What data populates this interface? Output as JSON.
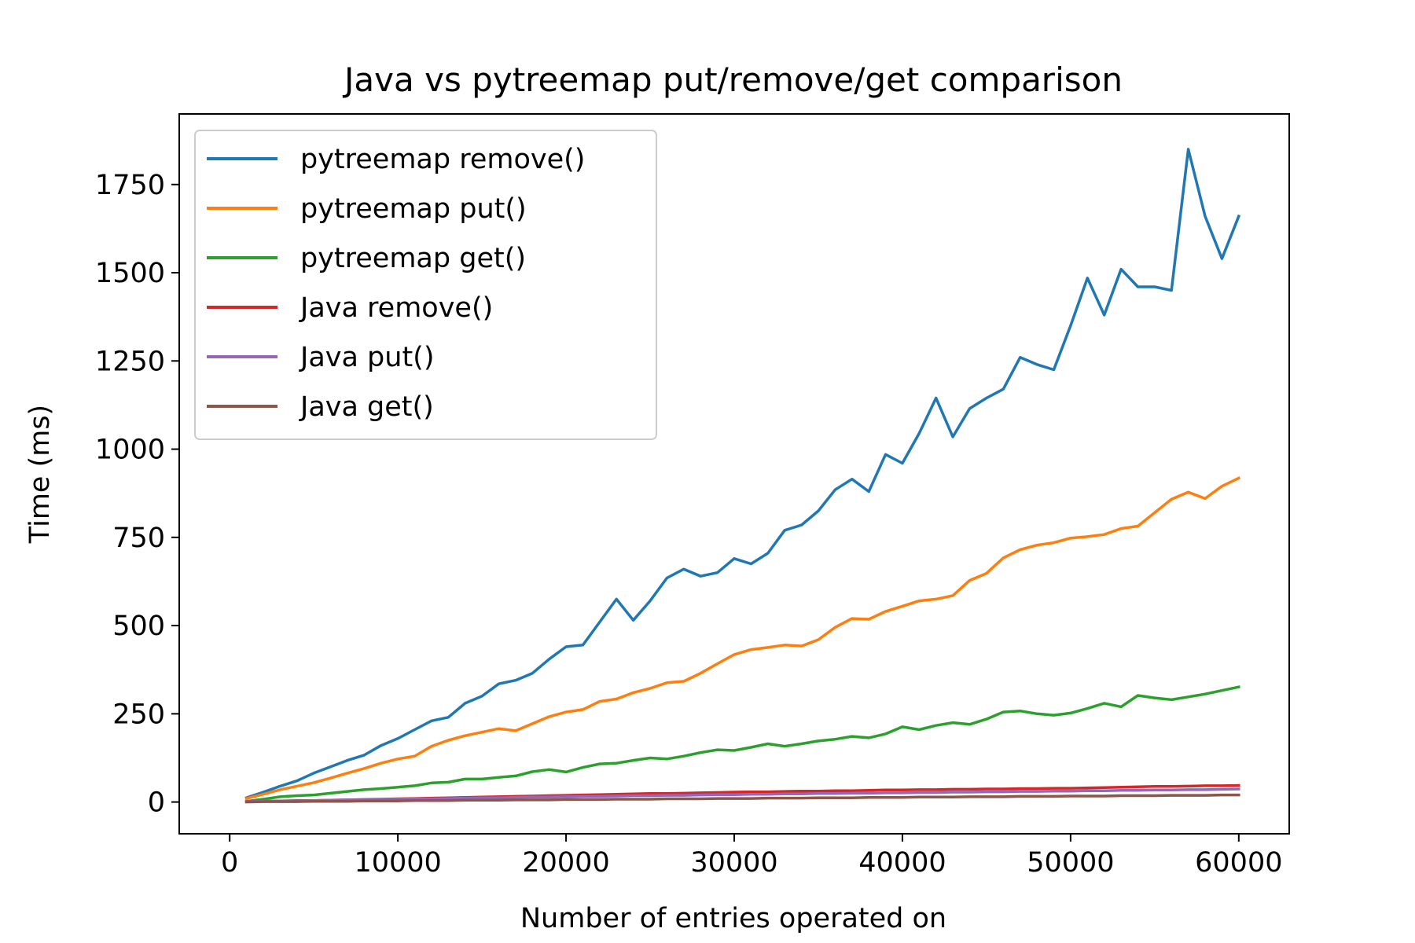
{
  "chart_data": {
    "type": "line",
    "title": "Java vs pytreemap put/remove/get comparison",
    "xlabel": "Number of entries operated on",
    "ylabel": "Time (ms)",
    "xlim": [
      -3000,
      63000
    ],
    "ylim": [
      -90,
      1950
    ],
    "xticks": [
      0,
      10000,
      20000,
      30000,
      40000,
      50000,
      60000
    ],
    "xtick_labels": [
      "0",
      "10000",
      "20000",
      "30000",
      "40000",
      "50000",
      "60000"
    ],
    "yticks": [
      0,
      250,
      500,
      750,
      1000,
      1250,
      1500,
      1750
    ],
    "ytick_labels": [
      "0",
      "250",
      "500",
      "750",
      "1000",
      "1250",
      "1500",
      "1750"
    ],
    "grid": false,
    "legend_position": "top-left",
    "x": [
      1000,
      2000,
      3000,
      4000,
      5000,
      6000,
      7000,
      8000,
      9000,
      10000,
      11000,
      12000,
      13000,
      14000,
      15000,
      16000,
      17000,
      18000,
      19000,
      20000,
      21000,
      22000,
      23000,
      24000,
      25000,
      26000,
      27000,
      28000,
      29000,
      30000,
      31000,
      32000,
      33000,
      34000,
      35000,
      36000,
      37000,
      38000,
      39000,
      40000,
      41000,
      42000,
      43000,
      44000,
      45000,
      46000,
      47000,
      48000,
      49000,
      50000,
      51000,
      52000,
      53000,
      54000,
      55000,
      56000,
      57000,
      58000,
      59000,
      60000
    ],
    "series": [
      {
        "name": "pytreemap remove()",
        "color": "#1f77b4",
        "values": [
          12,
          28,
          45,
          60,
          82,
          100,
          118,
          133,
          160,
          180,
          205,
          230,
          240,
          280,
          300,
          335,
          345,
          365,
          405,
          440,
          445,
          510,
          575,
          515,
          570,
          635,
          660,
          640,
          650,
          690,
          675,
          705,
          770,
          785,
          825,
          885,
          915,
          880,
          985,
          960,
          1045,
          1145,
          1035,
          1115,
          1145,
          1170,
          1260,
          1240,
          1225,
          1350,
          1485,
          1380,
          1510,
          1460,
          1460,
          1450,
          1850,
          1660,
          1540,
          1660
        ]
      },
      {
        "name": "pytreemap put()",
        "color": "#ff7f0e",
        "values": [
          10,
          22,
          35,
          45,
          55,
          68,
          82,
          95,
          110,
          122,
          130,
          158,
          175,
          188,
          198,
          208,
          202,
          222,
          242,
          255,
          262,
          285,
          292,
          310,
          322,
          338,
          342,
          365,
          392,
          418,
          432,
          438,
          445,
          442,
          460,
          495,
          520,
          518,
          540,
          555,
          570,
          575,
          585,
          628,
          648,
          692,
          715,
          728,
          735,
          748,
          752,
          758,
          775,
          782,
          820,
          858,
          878,
          860,
          895,
          918
        ]
      },
      {
        "name": "pytreemap get()",
        "color": "#2ca02c",
        "values": [
          2,
          8,
          15,
          18,
          20,
          25,
          30,
          35,
          38,
          42,
          46,
          54,
          56,
          65,
          65,
          70,
          74,
          86,
          92,
          85,
          98,
          108,
          110,
          118,
          125,
          122,
          130,
          140,
          148,
          146,
          155,
          165,
          158,
          165,
          173,
          178,
          186,
          182,
          193,
          213,
          205,
          217,
          225,
          220,
          235,
          255,
          258,
          250,
          246,
          252,
          265,
          280,
          270,
          302,
          295,
          290,
          298,
          306,
          316,
          326
        ]
      },
      {
        "name": "Java remove()",
        "color": "#d62728",
        "values": [
          1,
          2,
          3,
          4,
          4,
          5,
          6,
          7,
          8,
          9,
          10,
          11,
          12,
          13,
          14,
          15,
          16,
          17,
          18,
          19,
          20,
          21,
          22,
          23,
          24,
          24,
          25,
          26,
          27,
          28,
          29,
          29,
          30,
          31,
          31,
          32,
          32,
          33,
          34,
          34,
          35,
          35,
          36,
          36,
          37,
          37,
          38,
          38,
          39,
          39,
          40,
          41,
          42,
          43,
          44,
          44,
          45,
          46,
          46,
          47
        ]
      },
      {
        "name": "Java put()",
        "color": "#9467bd",
        "values": [
          1,
          2,
          3,
          3,
          4,
          5,
          6,
          6,
          7,
          8,
          9,
          9,
          10,
          11,
          12,
          12,
          13,
          14,
          14,
          15,
          16,
          16,
          17,
          18,
          18,
          19,
          19,
          20,
          21,
          21,
          22,
          22,
          23,
          23,
          24,
          24,
          25,
          25,
          26,
          26,
          27,
          27,
          28,
          28,
          29,
          29,
          30,
          30,
          31,
          31,
          32,
          32,
          33,
          33,
          34,
          34,
          35,
          35,
          36,
          37
        ]
      },
      {
        "name": "Java get()",
        "color": "#8c564b",
        "values": [
          0,
          1,
          1,
          1,
          2,
          2,
          2,
          3,
          3,
          3,
          4,
          4,
          4,
          5,
          5,
          5,
          6,
          6,
          6,
          7,
          7,
          7,
          8,
          8,
          8,
          9,
          9,
          9,
          10,
          10,
          10,
          11,
          11,
          11,
          12,
          12,
          12,
          13,
          13,
          13,
          14,
          14,
          14,
          15,
          15,
          15,
          16,
          16,
          16,
          17,
          17,
          17,
          18,
          18,
          18,
          19,
          19,
          19,
          20,
          20
        ]
      }
    ]
  }
}
